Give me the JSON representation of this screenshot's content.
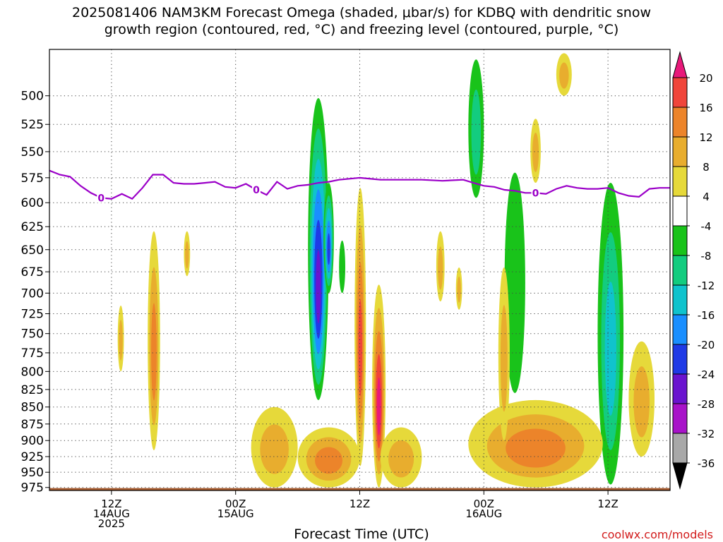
{
  "title": {
    "line1": "2025081406 NAM3KM Forecast Omega (shaded, μbar/s) for KDBQ with dendritic snow",
    "line2": "growth region (contoured, red, °C) and freezing level (contoured, purple, °C)"
  },
  "credit": "coolwx.com/models",
  "colors": {
    "surface": "#a65a2e",
    "freezing_line": "#9b00c8",
    "colorbar": [
      {
        "range": "20+",
        "color": "#e8197a"
      },
      {
        "range": "16-20",
        "color": "#f0453a"
      },
      {
        "range": "12-16",
        "color": "#ec842a"
      },
      {
        "range": "8-12",
        "color": "#e8ad2e"
      },
      {
        "range": "4-8",
        "color": "#e6d93a"
      },
      {
        "range": "-4-4",
        "color": "#ffffff"
      },
      {
        "range": "-8--4",
        "color": "#19c31a"
      },
      {
        "range": "-12--8",
        "color": "#13cc7f"
      },
      {
        "range": "-16--12",
        "color": "#10c3cd"
      },
      {
        "range": "-20--16",
        "color": "#1a8fff"
      },
      {
        "range": "-24--20",
        "color": "#1f3ae6"
      },
      {
        "range": "-28--24",
        "color": "#6a14cf"
      },
      {
        "range": "-32--28",
        "color": "#a813c9"
      },
      {
        "range": "-36--32",
        "color": "#a8a8a8"
      },
      {
        "range": "<-36",
        "color": "#000000"
      }
    ]
  },
  "chart_data": {
    "type": "heatmap",
    "title": "2025081406 NAM3KM Forecast Omega (shaded, μbar/s) for KDBQ with dendritic snow growth region (contoured, red, °C) and freezing level (contoured, purple, °C)",
    "xlabel": "Forecast Time (UTC)",
    "ylabel": "",
    "y_scale": "pressure (hPa), inverted",
    "y_ticks": [
      500,
      525,
      550,
      575,
      600,
      625,
      650,
      675,
      700,
      725,
      750,
      775,
      800,
      825,
      850,
      875,
      900,
      925,
      950,
      975
    ],
    "x_ticks": [
      {
        "h": 6,
        "lines": [
          "12Z",
          "14AUG",
          "2025"
        ]
      },
      {
        "h": 18,
        "lines": [
          "00Z",
          "15AUG"
        ]
      },
      {
        "h": 30,
        "lines": [
          "12Z",
          ""
        ]
      },
      {
        "h": 42,
        "lines": [
          "00Z",
          "16AUG"
        ]
      },
      {
        "h": 54,
        "lines": [
          "12Z",
          ""
        ]
      }
    ],
    "xlim_hours": [
      0,
      60
    ],
    "ylim_hpa": [
      462,
      980
    ],
    "colorbar_labels": [
      "20",
      "16",
      "12",
      "8",
      "4",
      "-4",
      "-8",
      "-12",
      "-16",
      "-20",
      "-24",
      "-28",
      "-32",
      "-36"
    ],
    "freezing_level": {
      "label": "0",
      "hours": [
        0,
        1,
        2,
        3,
        4,
        5,
        6,
        7,
        8,
        9,
        10,
        11,
        12,
        13,
        14,
        15,
        16,
        17,
        18,
        19,
        20,
        21,
        22,
        23,
        24,
        25,
        26,
        27,
        28,
        29,
        30,
        32,
        34,
        36,
        38,
        40,
        41,
        42,
        43,
        44,
        45,
        46,
        47,
        48,
        49,
        50,
        51,
        52,
        53,
        54,
        55,
        56,
        57,
        58,
        59,
        60
      ],
      "hpa": [
        568,
        572,
        574,
        583,
        590,
        595,
        596,
        591,
        596,
        585,
        572,
        572,
        580,
        581,
        581,
        580,
        579,
        584,
        585,
        581,
        587,
        592,
        579,
        586,
        583,
        582,
        580,
        579,
        577,
        576,
        575,
        577,
        577,
        577,
        578,
        577,
        580,
        583,
        584,
        587,
        588,
        590,
        590,
        591,
        586,
        583,
        585,
        586,
        586,
        585,
        590,
        593,
        594,
        586,
        585,
        585
      ]
    },
    "omega_features": [
      {
        "sign": "up",
        "h": [
          25,
          27
        ],
        "p": [
          502,
          840
        ],
        "peak": -28
      },
      {
        "sign": "up",
        "h": [
          26.5,
          27.5
        ],
        "p": [
          580,
          700
        ],
        "peak": -24
      },
      {
        "sign": "up",
        "h": [
          40.5,
          42
        ],
        "p": [
          470,
          595
        ],
        "peak": -12
      },
      {
        "sign": "up",
        "h": [
          44,
          46
        ],
        "p": [
          570,
          830
        ],
        "peak": -8
      },
      {
        "sign": "up",
        "h": [
          53,
          55.5
        ],
        "p": [
          580,
          970
        ],
        "peak": -16
      },
      {
        "sign": "up",
        "h": [
          28,
          28.6
        ],
        "p": [
          640,
          700
        ],
        "peak": -8
      },
      {
        "sign": "down",
        "h": [
          29.5,
          30.6
        ],
        "p": [
          585,
          940
        ],
        "peak": 16
      },
      {
        "sign": "down",
        "h": [
          31.2,
          32.5
        ],
        "p": [
          690,
          975
        ],
        "peak": 20
      },
      {
        "sign": "down",
        "h": [
          9.5,
          10.7
        ],
        "p": [
          630,
          915
        ],
        "peak": 12
      },
      {
        "sign": "down",
        "h": [
          6.6,
          7.2
        ],
        "p": [
          715,
          800
        ],
        "peak": 8
      },
      {
        "sign": "down",
        "h": [
          19.5,
          24
        ],
        "p": [
          850,
          975
        ],
        "peak": 8
      },
      {
        "sign": "down",
        "h": [
          24,
          30
        ],
        "p": [
          880,
          975
        ],
        "peak": 12
      },
      {
        "sign": "down",
        "h": [
          32,
          36
        ],
        "p": [
          880,
          975
        ],
        "peak": 8
      },
      {
        "sign": "down",
        "h": [
          40.5,
          53.5
        ],
        "p": [
          840,
          975
        ],
        "peak": 12
      },
      {
        "sign": "down",
        "h": [
          46.5,
          47.5
        ],
        "p": [
          520,
          580
        ],
        "peak": 8
      },
      {
        "sign": "down",
        "h": [
          49,
          50.5
        ],
        "p": [
          465,
          500
        ],
        "peak": 8
      },
      {
        "sign": "down",
        "h": [
          56,
          58.5
        ],
        "p": [
          760,
          925
        ],
        "peak": 8
      },
      {
        "sign": "down",
        "h": [
          43.4,
          44.5
        ],
        "p": [
          670,
          900
        ],
        "peak": 8
      },
      {
        "sign": "down",
        "h": [
          13,
          13.6
        ],
        "p": [
          630,
          680
        ],
        "peak": 8
      },
      {
        "sign": "down",
        "h": [
          37.4,
          38.2
        ],
        "p": [
          630,
          710
        ],
        "peak": 8
      },
      {
        "sign": "down",
        "h": [
          39.3,
          39.9
        ],
        "p": [
          670,
          720
        ],
        "peak": 8
      }
    ]
  }
}
